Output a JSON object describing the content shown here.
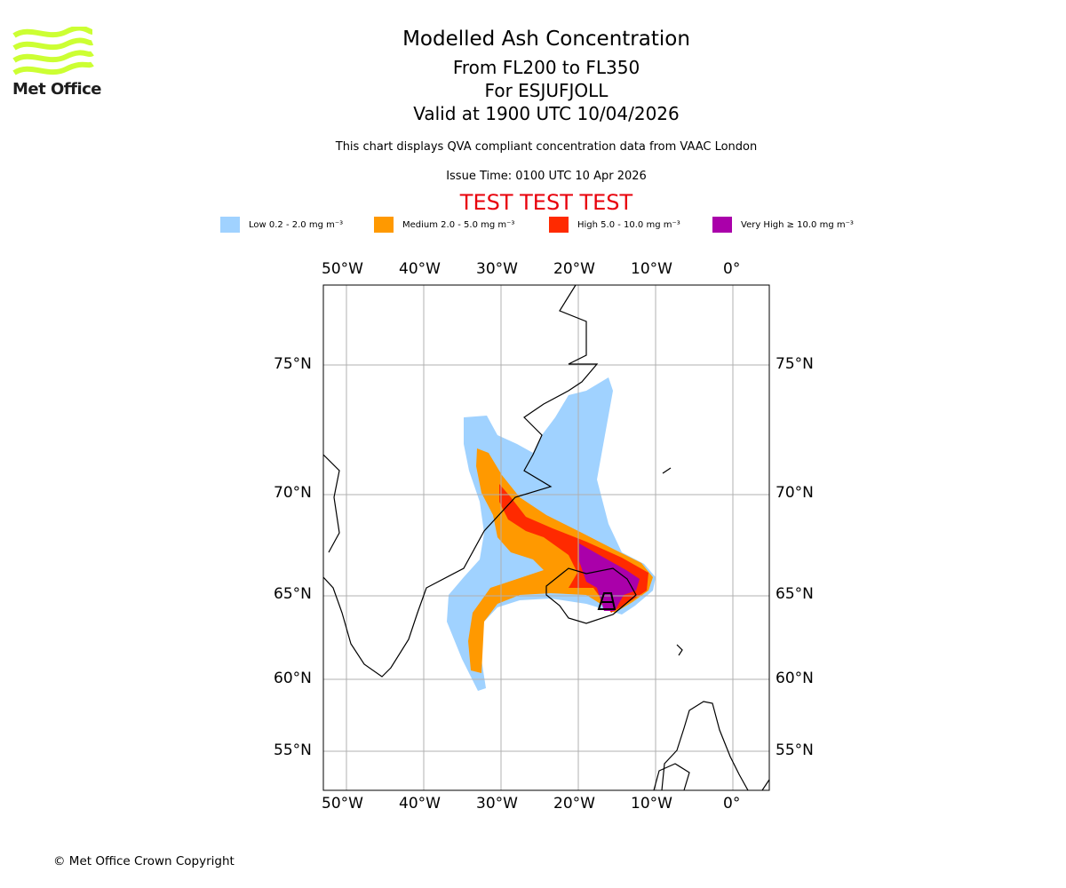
{
  "logo": {
    "text": "Met Office",
    "color": "#ccff33"
  },
  "title": {
    "line1": "Modelled Ash Concentration",
    "line2": "From FL200 to FL350",
    "line3": "For ESJUFJOLL",
    "line4": "Valid at 1900 UTC 10/04/2026"
  },
  "subtitle": "This chart displays QVA compliant concentration data from VAAC London",
  "issue_time": "Issue Time: 0100 UTC 10 Apr 2026",
  "test_banner": "TEST TEST TEST",
  "legend": [
    {
      "label": "Low 0.2 - 2.0 mg m⁻³",
      "color": "#a0d2ff"
    },
    {
      "label": "Medium 2.0 - 5.0 mg m⁻³",
      "color": "#ff9900"
    },
    {
      "label": "High 5.0 - 10.0 mg m⁻³",
      "color": "#ff2a00"
    },
    {
      "label": "Very High ≥ 10.0 mg m⁻³",
      "color": "#aa00aa"
    }
  ],
  "map": {
    "lon_ticks": [
      "50°W",
      "40°W",
      "30°W",
      "20°W",
      "10°W",
      "0°"
    ],
    "lat_ticks": [
      "75°N",
      "70°N",
      "65°N",
      "60°N",
      "55°N"
    ],
    "volcano": "ESJUFJOLL"
  },
  "copyright": "© Met Office Crown Copyright"
}
